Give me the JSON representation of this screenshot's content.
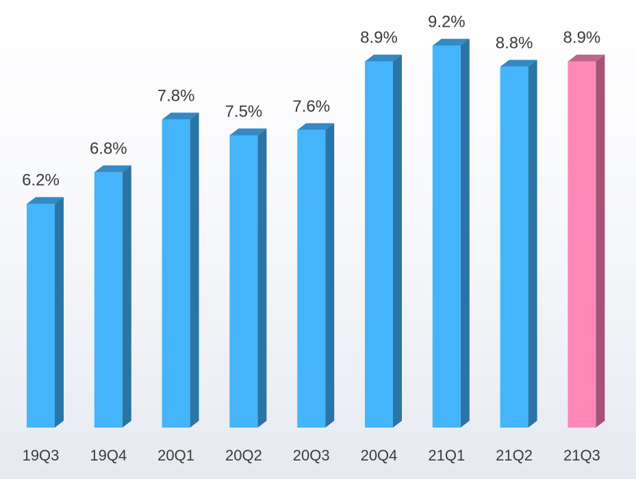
{
  "chart_data": {
    "type": "bar",
    "title": "",
    "xlabel": "",
    "ylabel": "",
    "categories": [
      "19Q3",
      "19Q4",
      "20Q1",
      "20Q2",
      "20Q3",
      "20Q4",
      "21Q1",
      "21Q2",
      "21Q3"
    ],
    "values": [
      6.2,
      6.8,
      7.8,
      7.5,
      7.6,
      8.9,
      9.2,
      8.8,
      8.9
    ],
    "data_labels": [
      "6.2%",
      "6.8%",
      "7.8%",
      "7.5%",
      "7.6%",
      "8.9%",
      "9.2%",
      "8.8%",
      "8.9%"
    ],
    "style": "3d-column",
    "grid": false,
    "legend": "none",
    "colors": {
      "default_front": "#45b5fb",
      "default_top": "#338ac4",
      "default_side": "#2a75a5",
      "highlight_front": "#ff88b8",
      "highlight_top": "#c0658c",
      "highlight_side": "#a65277",
      "highlight_category": "21Q3"
    }
  }
}
